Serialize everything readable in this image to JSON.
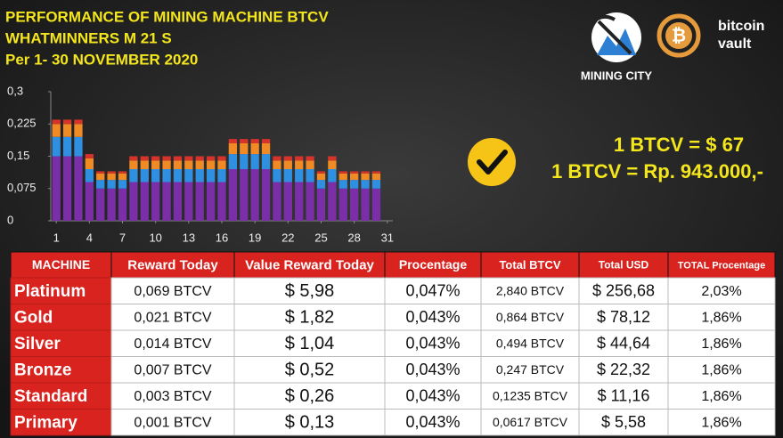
{
  "header": {
    "lines": [
      "PERFORMANCE OF MINING MACHINE BTCV",
      "WHATMINNERS M 21 S",
      "Per 1- 30 NOVEMBER  2020"
    ]
  },
  "logos": {
    "mining": "MINING CITY",
    "vault": [
      "bitcoin",
      "vault"
    ]
  },
  "rates": [
    "1 BTCV = $ 67",
    "1 BTCV = Rp. 943.000,-"
  ],
  "chart_data": {
    "type": "bar",
    "stacked": true,
    "x": [
      1,
      2,
      3,
      4,
      5,
      6,
      7,
      8,
      9,
      10,
      11,
      12,
      13,
      14,
      15,
      16,
      17,
      18,
      19,
      20,
      21,
      22,
      23,
      24,
      25,
      26,
      27,
      28,
      29,
      30
    ],
    "series": [
      {
        "color": "#7a2fa8",
        "values": [
          0.15,
          0.15,
          0.15,
          0.09,
          0.075,
          0.075,
          0.075,
          0.09,
          0.09,
          0.09,
          0.09,
          0.09,
          0.09,
          0.09,
          0.09,
          0.09,
          0.12,
          0.12,
          0.12,
          0.12,
          0.09,
          0.09,
          0.09,
          0.09,
          0.075,
          0.09,
          0.075,
          0.075,
          0.075,
          0.075
        ]
      },
      {
        "color": "#2f8fe0",
        "values": [
          0.045,
          0.045,
          0.045,
          0.03,
          0.02,
          0.02,
          0.02,
          0.03,
          0.03,
          0.03,
          0.03,
          0.03,
          0.03,
          0.03,
          0.03,
          0.03,
          0.035,
          0.035,
          0.035,
          0.035,
          0.03,
          0.03,
          0.03,
          0.03,
          0.02,
          0.03,
          0.02,
          0.02,
          0.02,
          0.02
        ]
      },
      {
        "color": "#f08a24",
        "values": [
          0.03,
          0.03,
          0.03,
          0.025,
          0.015,
          0.015,
          0.015,
          0.02,
          0.02,
          0.02,
          0.02,
          0.02,
          0.02,
          0.02,
          0.02,
          0.02,
          0.025,
          0.025,
          0.025,
          0.025,
          0.02,
          0.02,
          0.02,
          0.02,
          0.015,
          0.02,
          0.015,
          0.015,
          0.015,
          0.015
        ]
      },
      {
        "color": "#d8332a",
        "values": [
          0.01,
          0.01,
          0.01,
          0.01,
          0.005,
          0.005,
          0.005,
          0.01,
          0.01,
          0.01,
          0.01,
          0.01,
          0.01,
          0.01,
          0.01,
          0.01,
          0.01,
          0.01,
          0.01,
          0.01,
          0.01,
          0.01,
          0.01,
          0.01,
          0.005,
          0.01,
          0.005,
          0.005,
          0.005,
          0.005
        ]
      }
    ],
    "xlim": [
      0.5,
      31.5
    ],
    "xticks": [
      1,
      4,
      7,
      10,
      13,
      16,
      19,
      22,
      25,
      28,
      31
    ],
    "ylim": [
      0,
      0.3
    ],
    "yticks": [
      0,
      {
        "value": 0.075,
        "label": "0,075"
      },
      {
        "value": 0.15,
        "label": "0,15"
      },
      {
        "value": 0.225,
        "label": "0,225"
      },
      {
        "value": 0.3,
        "label": "0,3"
      }
    ]
  },
  "table": {
    "header": [
      "MACHINE",
      "Reward Today",
      "Value Reward Today",
      "Procentage",
      "Total BTCV",
      "Total USD",
      "TOTAL Procentage"
    ],
    "rows": [
      [
        "Platinum",
        "0,069 BTCV",
        "$ 5,98",
        "0,047%",
        "2,840 BTCV",
        "$ 256,68",
        "2,03%"
      ],
      [
        "Gold",
        "0,021 BTCV",
        "$ 1,82",
        "0,043%",
        "0,864 BTCV",
        "$ 78,12",
        "1,86%"
      ],
      [
        "Silver",
        "0,014 BTCV",
        "$ 1,04",
        "0,043%",
        "0,494 BTCV",
        "$ 44,64",
        "1,86%"
      ],
      [
        "Bronze",
        "0,007 BTCV",
        "$ 0,52",
        "0,043%",
        "0,247 BTCV",
        "$ 22,32",
        "1,86%"
      ],
      [
        "Standard",
        "0,003 BTCV",
        "$ 0,26",
        "0,043%",
        "0,1235 BTCV",
        "$ 11,16",
        "1,86%"
      ],
      [
        "Primary",
        "0,001 BTCV",
        "$ 0,13",
        "0,043%",
        "0,0617 BTCV",
        "$ 5,58",
        "1,86%"
      ]
    ]
  }
}
